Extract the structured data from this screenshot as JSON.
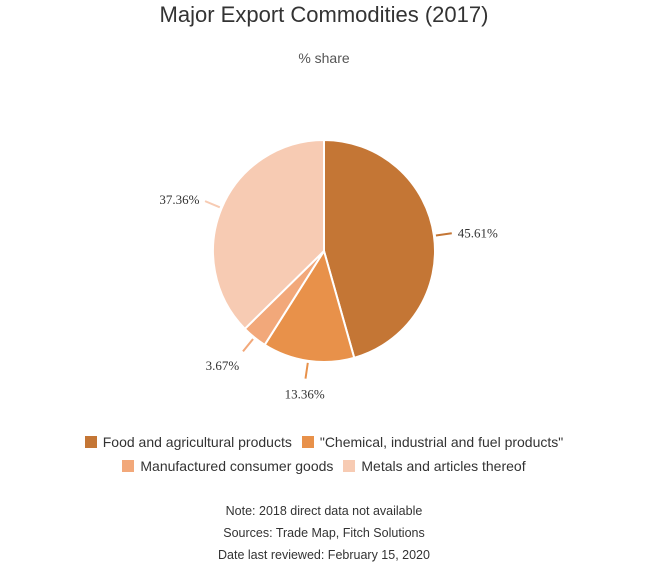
{
  "chart_data": {
    "type": "pie",
    "title": "Major Export Commodities (2017)",
    "subtitle": "% share",
    "slices": [
      {
        "label": "Food and agricultural products",
        "value": 45.61,
        "display": "45.61%",
        "color": "#c47635"
      },
      {
        "label": "\"Chemical, industrial and fuel products\"",
        "value": 13.36,
        "display": "13.36%",
        "color": "#e8914a"
      },
      {
        "label": "Manufactured consumer goods",
        "value": 3.67,
        "display": "3.67%",
        "color": "#f2a87a"
      },
      {
        "label": "Metals and articles thereof",
        "value": 37.36,
        "display": "37.36%",
        "color": "#f7cbb3"
      }
    ],
    "legend_position": "bottom"
  },
  "notes": {
    "line1": "Note: 2018 direct data not available",
    "line2": "Sources: Trade Map, Fitch Solutions",
    "line3": "Date last reviewed: February 15, 2020"
  }
}
